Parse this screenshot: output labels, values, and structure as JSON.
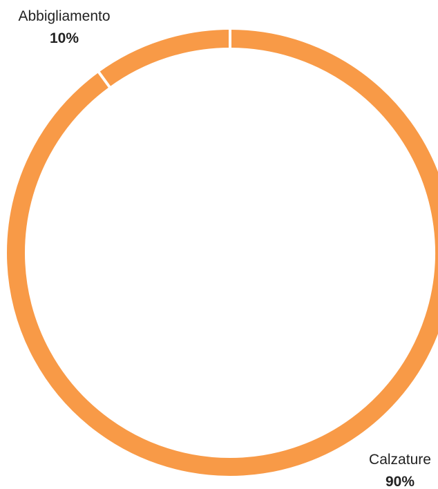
{
  "chart_data": {
    "type": "pie",
    "donut": true,
    "title": "",
    "slices": [
      {
        "name": "Abbigliamento",
        "value": 10,
        "label": "10%",
        "color": "#F89A47"
      },
      {
        "name": "Calzature",
        "value": 90,
        "label": "90%",
        "color": "#F89A47"
      }
    ],
    "start": "top",
    "direction": "counterclockwise",
    "separator_color": "#ffffff",
    "legend": "none"
  }
}
